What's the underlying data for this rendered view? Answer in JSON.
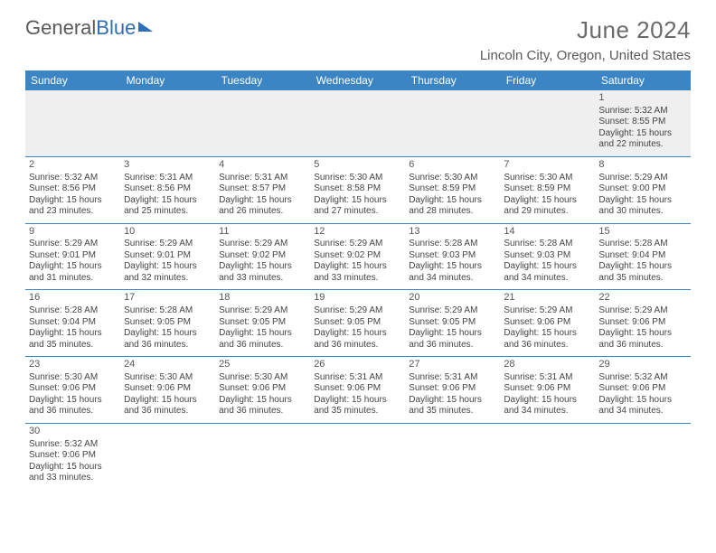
{
  "brand": {
    "part1": "General",
    "part2": "Blue"
  },
  "title": "June 2024",
  "location": "Lincoln City, Oregon, United States",
  "colors": {
    "header_bg": "#3b85c5",
    "header_text": "#ffffff",
    "brand_gray": "#5a5a5a",
    "brand_blue": "#2e6fb5",
    "text": "#444444",
    "rule": "#3b85c5",
    "alt_row": "#efefef"
  },
  "weekdays": [
    "Sunday",
    "Monday",
    "Tuesday",
    "Wednesday",
    "Thursday",
    "Friday",
    "Saturday"
  ],
  "weeks": [
    [
      null,
      null,
      null,
      null,
      null,
      null,
      {
        "n": "1",
        "sunrise": "5:32 AM",
        "sunset": "8:55 PM",
        "day_h": "15",
        "day_m": "22"
      }
    ],
    [
      {
        "n": "2",
        "sunrise": "5:32 AM",
        "sunset": "8:56 PM",
        "day_h": "15",
        "day_m": "23"
      },
      {
        "n": "3",
        "sunrise": "5:31 AM",
        "sunset": "8:56 PM",
        "day_h": "15",
        "day_m": "25"
      },
      {
        "n": "4",
        "sunrise": "5:31 AM",
        "sunset": "8:57 PM",
        "day_h": "15",
        "day_m": "26"
      },
      {
        "n": "5",
        "sunrise": "5:30 AM",
        "sunset": "8:58 PM",
        "day_h": "15",
        "day_m": "27"
      },
      {
        "n": "6",
        "sunrise": "5:30 AM",
        "sunset": "8:59 PM",
        "day_h": "15",
        "day_m": "28"
      },
      {
        "n": "7",
        "sunrise": "5:30 AM",
        "sunset": "8:59 PM",
        "day_h": "15",
        "day_m": "29"
      },
      {
        "n": "8",
        "sunrise": "5:29 AM",
        "sunset": "9:00 PM",
        "day_h": "15",
        "day_m": "30"
      }
    ],
    [
      {
        "n": "9",
        "sunrise": "5:29 AM",
        "sunset": "9:01 PM",
        "day_h": "15",
        "day_m": "31"
      },
      {
        "n": "10",
        "sunrise": "5:29 AM",
        "sunset": "9:01 PM",
        "day_h": "15",
        "day_m": "32"
      },
      {
        "n": "11",
        "sunrise": "5:29 AM",
        "sunset": "9:02 PM",
        "day_h": "15",
        "day_m": "33"
      },
      {
        "n": "12",
        "sunrise": "5:29 AM",
        "sunset": "9:02 PM",
        "day_h": "15",
        "day_m": "33"
      },
      {
        "n": "13",
        "sunrise": "5:28 AM",
        "sunset": "9:03 PM",
        "day_h": "15",
        "day_m": "34"
      },
      {
        "n": "14",
        "sunrise": "5:28 AM",
        "sunset": "9:03 PM",
        "day_h": "15",
        "day_m": "34"
      },
      {
        "n": "15",
        "sunrise": "5:28 AM",
        "sunset": "9:04 PM",
        "day_h": "15",
        "day_m": "35"
      }
    ],
    [
      {
        "n": "16",
        "sunrise": "5:28 AM",
        "sunset": "9:04 PM",
        "day_h": "15",
        "day_m": "35"
      },
      {
        "n": "17",
        "sunrise": "5:28 AM",
        "sunset": "9:05 PM",
        "day_h": "15",
        "day_m": "36"
      },
      {
        "n": "18",
        "sunrise": "5:29 AM",
        "sunset": "9:05 PM",
        "day_h": "15",
        "day_m": "36"
      },
      {
        "n": "19",
        "sunrise": "5:29 AM",
        "sunset": "9:05 PM",
        "day_h": "15",
        "day_m": "36"
      },
      {
        "n": "20",
        "sunrise": "5:29 AM",
        "sunset": "9:05 PM",
        "day_h": "15",
        "day_m": "36"
      },
      {
        "n": "21",
        "sunrise": "5:29 AM",
        "sunset": "9:06 PM",
        "day_h": "15",
        "day_m": "36"
      },
      {
        "n": "22",
        "sunrise": "5:29 AM",
        "sunset": "9:06 PM",
        "day_h": "15",
        "day_m": "36"
      }
    ],
    [
      {
        "n": "23",
        "sunrise": "5:30 AM",
        "sunset": "9:06 PM",
        "day_h": "15",
        "day_m": "36"
      },
      {
        "n": "24",
        "sunrise": "5:30 AM",
        "sunset": "9:06 PM",
        "day_h": "15",
        "day_m": "36"
      },
      {
        "n": "25",
        "sunrise": "5:30 AM",
        "sunset": "9:06 PM",
        "day_h": "15",
        "day_m": "36"
      },
      {
        "n": "26",
        "sunrise": "5:31 AM",
        "sunset": "9:06 PM",
        "day_h": "15",
        "day_m": "35"
      },
      {
        "n": "27",
        "sunrise": "5:31 AM",
        "sunset": "9:06 PM",
        "day_h": "15",
        "day_m": "35"
      },
      {
        "n": "28",
        "sunrise": "5:31 AM",
        "sunset": "9:06 PM",
        "day_h": "15",
        "day_m": "34"
      },
      {
        "n": "29",
        "sunrise": "5:32 AM",
        "sunset": "9:06 PM",
        "day_h": "15",
        "day_m": "34"
      }
    ],
    [
      {
        "n": "30",
        "sunrise": "5:32 AM",
        "sunset": "9:06 PM",
        "day_h": "15",
        "day_m": "33"
      },
      null,
      null,
      null,
      null,
      null,
      null
    ]
  ],
  "labels": {
    "sunrise": "Sunrise:",
    "sunset": "Sunset:",
    "daylight_prefix": "Daylight:",
    "hours_word": "hours",
    "and_word": "and",
    "minutes_word": "minutes."
  }
}
